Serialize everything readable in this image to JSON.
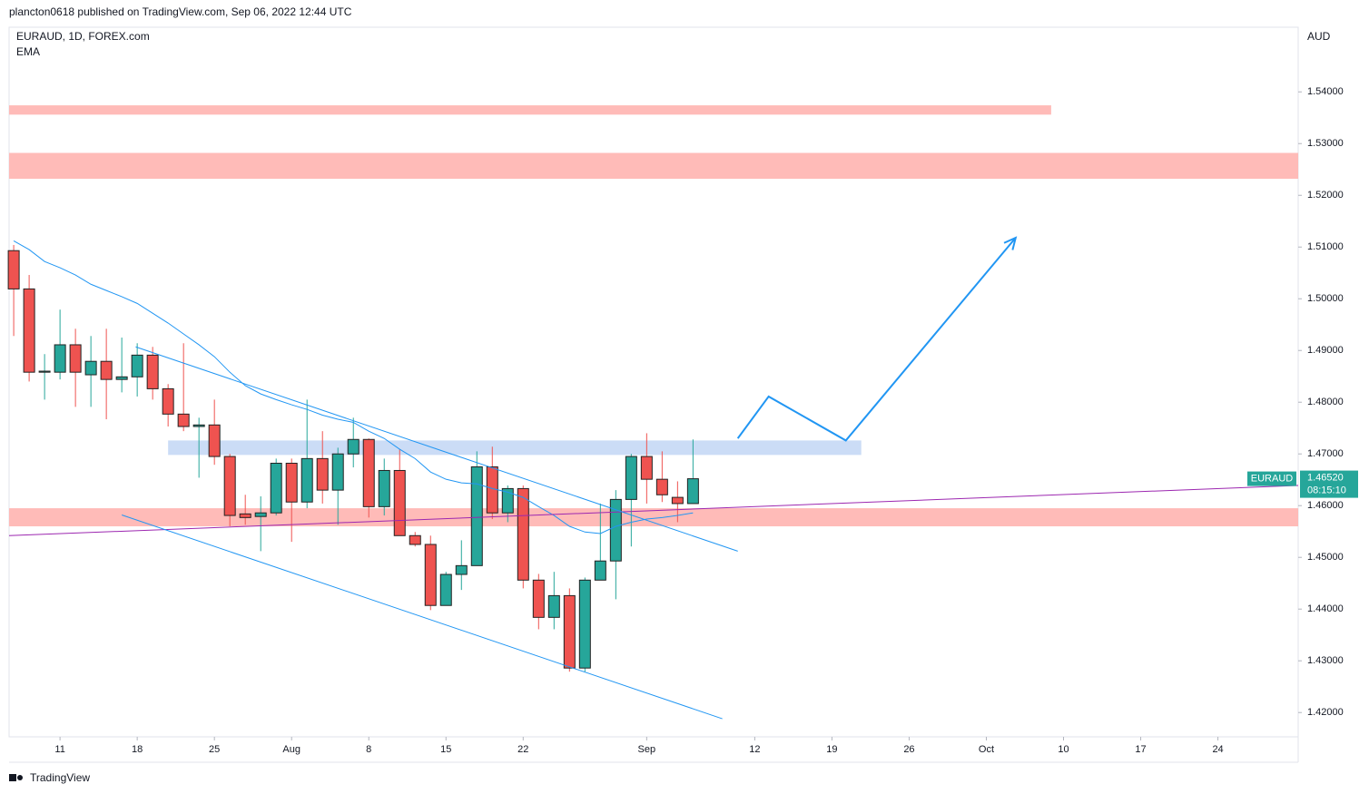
{
  "header": {
    "text": "plancton0618 published on TradingView.com, Sep 06, 2022 12:44 UTC"
  },
  "footer": {
    "brand": "TradingView"
  },
  "chart_data": {
    "type": "candlestick",
    "title": "EURAUD, 1D, FOREX.com",
    "indicator": "EMA",
    "currency": "AUD",
    "up_color": "#26a69a",
    "down_color": "#ef5350",
    "ema_color": "#2196f3",
    "xlim": [
      -0.3,
      83.2
    ],
    "xticks": [
      {
        "value": 3,
        "label": "11"
      },
      {
        "value": 8,
        "label": "18"
      },
      {
        "value": 13,
        "label": "25"
      },
      {
        "value": 18,
        "label": "Aug"
      },
      {
        "value": 23,
        "label": "8"
      },
      {
        "value": 28,
        "label": "15"
      },
      {
        "value": 33,
        "label": "22"
      },
      {
        "value": 41,
        "label": "Sep"
      },
      {
        "value": 48,
        "label": "12"
      },
      {
        "value": 53,
        "label": "19"
      },
      {
        "value": 58,
        "label": "26"
      },
      {
        "value": 63,
        "label": "Oct"
      },
      {
        "value": 68,
        "label": "10"
      },
      {
        "value": 73,
        "label": "17"
      },
      {
        "value": 78,
        "label": "24"
      }
    ],
    "ylim": [
      1.4153,
      1.5525
    ],
    "yticks": [
      {
        "value": 1.42,
        "label": "1.42000"
      },
      {
        "value": 1.43,
        "label": "1.43000"
      },
      {
        "value": 1.44,
        "label": "1.44000"
      },
      {
        "value": 1.45,
        "label": "1.45000"
      },
      {
        "value": 1.46,
        "label": "1.46000"
      },
      {
        "value": 1.47,
        "label": "1.47000"
      },
      {
        "value": 1.48,
        "label": "1.48000"
      },
      {
        "value": 1.49,
        "label": "1.49000"
      },
      {
        "value": 1.5,
        "label": "1.50000"
      },
      {
        "value": 1.51,
        "label": "1.51000"
      },
      {
        "value": 1.52,
        "label": "1.52000"
      },
      {
        "value": 1.53,
        "label": "1.53000"
      },
      {
        "value": 1.54,
        "label": "1.54000"
      }
    ],
    "x": [
      0,
      1,
      2,
      3,
      4,
      5,
      6,
      7,
      8,
      9,
      10,
      11,
      12,
      13,
      14,
      15,
      16,
      17,
      18,
      19,
      20,
      21,
      22,
      23,
      24,
      25,
      26,
      27,
      28,
      29,
      30,
      31,
      32,
      33,
      34,
      35,
      36,
      37,
      38,
      39,
      40,
      41,
      42,
      43,
      44
    ],
    "open": [
      1.5093,
      1.5019,
      1.4858,
      1.4858,
      1.4911,
      1.4853,
      1.4879,
      1.4844,
      1.4849,
      1.4891,
      1.4826,
      1.4777,
      1.4753,
      1.4756,
      1.4695,
      1.4584,
      1.4579,
      1.4586,
      1.4682,
      1.4607,
      1.4691,
      1.463,
      1.47,
      1.4728,
      1.4598,
      1.4668,
      1.4542,
      1.4525,
      1.4407,
      1.4467,
      1.4484,
      1.4675,
      1.4586,
      1.4633,
      1.4456,
      1.4384,
      1.4426,
      1.4286,
      1.4456,
      1.4493,
      1.4612,
      1.4695,
      1.4651,
      1.4616,
      1.4604
    ],
    "high": [
      1.5104,
      1.5046,
      1.4893,
      1.4979,
      1.4942,
      1.4928,
      1.4942,
      1.4925,
      1.4914,
      1.4907,
      1.4835,
      1.4914,
      1.477,
      1.4805,
      1.47,
      1.4621,
      1.4618,
      1.4691,
      1.4691,
      1.4805,
      1.4744,
      1.4712,
      1.477,
      1.473,
      1.4691,
      1.4709,
      1.4549,
      1.4542,
      1.4472,
      1.4533,
      1.4705,
      1.4714,
      1.4639,
      1.4639,
      1.4468,
      1.4472,
      1.444,
      1.4461,
      1.4604,
      1.463,
      1.47,
      1.474,
      1.4705,
      1.4647,
      1.4728
    ],
    "low": [
      1.4928,
      1.484,
      1.4805,
      1.4844,
      1.4791,
      1.4791,
      1.4767,
      1.4819,
      1.4811,
      1.4805,
      1.4753,
      1.4744,
      1.4654,
      1.4679,
      1.456,
      1.4563,
      1.4512,
      1.4581,
      1.453,
      1.4595,
      1.4604,
      1.4563,
      1.4674,
      1.4577,
      1.4581,
      1.4542,
      1.4521,
      1.4398,
      1.4407,
      1.4437,
      1.4484,
      1.4574,
      1.4568,
      1.444,
      1.4361,
      1.4361,
      1.4279,
      1.4279,
      1.4456,
      1.4419,
      1.4521,
      1.4604,
      1.4607,
      1.4568,
      1.4604
    ],
    "close": [
      1.5019,
      1.4858,
      1.486,
      1.4911,
      1.4858,
      1.4879,
      1.4844,
      1.4849,
      1.4891,
      1.4826,
      1.4777,
      1.4753,
      1.4756,
      1.4695,
      1.4581,
      1.4577,
      1.4586,
      1.4682,
      1.4607,
      1.4691,
      1.463,
      1.47,
      1.4728,
      1.4598,
      1.4668,
      1.4542,
      1.4525,
      1.4407,
      1.4467,
      1.4484,
      1.4675,
      1.4586,
      1.4633,
      1.4456,
      1.4384,
      1.4426,
      1.4286,
      1.4456,
      1.4493,
      1.4612,
      1.4695,
      1.4651,
      1.4621,
      1.4604,
      1.4652
    ],
    "ema": [
      1.5112,
      1.5095,
      1.5072,
      1.506,
      1.5046,
      1.5028,
      1.5016,
      1.5004,
      1.4991,
      1.4972,
      1.4953,
      1.4932,
      1.4911,
      1.4888,
      1.4858,
      1.4832,
      1.4816,
      1.4805,
      1.4795,
      1.4786,
      1.4775,
      1.4767,
      1.4761,
      1.4744,
      1.473,
      1.4709,
      1.4691,
      1.4665,
      1.4651,
      1.4644,
      1.4642,
      1.4633,
      1.4626,
      1.4616,
      1.4598,
      1.4581,
      1.456,
      1.4549,
      1.4546,
      1.456,
      1.4568,
      1.4574,
      1.4577,
      1.4581,
      1.4586
    ],
    "price_label": {
      "symbol": "EURAUD",
      "price": "1.46520",
      "countdown": "08:15:10",
      "color": "#26a69a"
    },
    "zones": [
      {
        "x": [
          -0.3,
          67.2
        ],
        "y": [
          1.5374,
          1.5356
        ],
        "color": "#ffb4b0"
      },
      {
        "x": [
          -0.3,
          83.2
        ],
        "y": [
          1.5282,
          1.5232
        ],
        "color": "#ffb4b0"
      },
      {
        "x": [
          10,
          54.9
        ],
        "y": [
          1.4726,
          1.4698
        ],
        "color": "#c5d8f5"
      },
      {
        "x": [
          -0.3,
          83.2
        ],
        "y": [
          1.4595,
          1.456
        ],
        "color": "#ffb4b0"
      }
    ],
    "lines": [
      {
        "x": [
          -0.3,
          83.2
        ],
        "y": [
          1.4542,
          1.4639
        ],
        "color": "#9c27b0"
      },
      {
        "x": [
          7.9,
          46.9
        ],
        "y": [
          1.4907,
          1.4512
        ],
        "color": "#2196f3"
      },
      {
        "x": [
          7,
          45.9
        ],
        "y": [
          1.4582,
          1.4188
        ],
        "color": "#2196f3"
      },
      {
        "x": [
          46.9,
          48.9,
          53.9,
          64.9
        ],
        "y": [
          1.473,
          1.4811,
          1.4726,
          1.5118
        ],
        "color": "#2196f3",
        "arrow": true
      }
    ]
  }
}
